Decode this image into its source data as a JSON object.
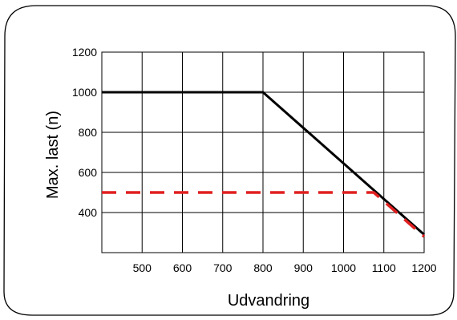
{
  "chart_data": {
    "type": "line",
    "xlabel": "Udvandring",
    "ylabel": "Max. last (n)",
    "xlim": [
      400,
      1200
    ],
    "ylim": [
      200,
      1200
    ],
    "x_ticks": [
      500,
      600,
      700,
      800,
      900,
      1000,
      1100,
      1200
    ],
    "y_ticks": [
      400,
      600,
      800,
      1000,
      1200
    ],
    "grid": true,
    "colors": {
      "frame": "#000000",
      "grid": "#000000",
      "solid_series": "#000000",
      "dashed_series": "#e02020"
    },
    "series": [
      {
        "style": "solid",
        "color": "#000000",
        "points": [
          [
            400,
            1000
          ],
          [
            800,
            1000
          ],
          [
            1200,
            290
          ]
        ]
      },
      {
        "style": "dashed",
        "color": "#e02020",
        "points": [
          [
            400,
            500
          ],
          [
            1075,
            500
          ],
          [
            1200,
            280
          ]
        ]
      }
    ]
  }
}
